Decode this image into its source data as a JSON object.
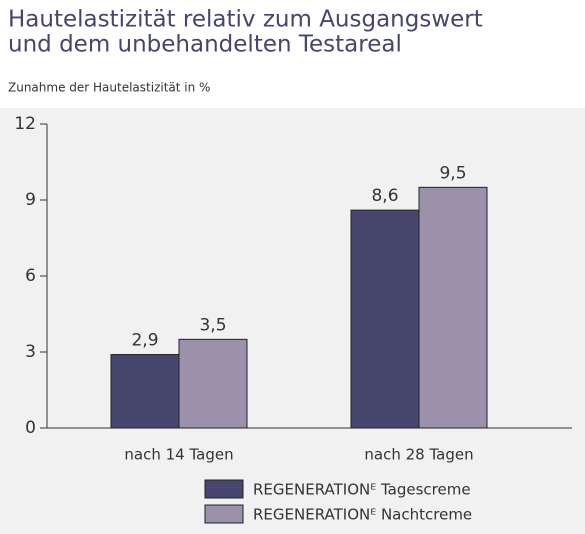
{
  "chart_data": {
    "type": "bar",
    "title": [
      "Hautelastizität relativ zum Ausgangswert",
      "und dem unbehandelten Testareal"
    ],
    "subtitle": "Zunahme der Hautelastizität in %",
    "categories": [
      "nach 14 Tagen",
      "nach 28 Tagen"
    ],
    "series": [
      {
        "name": "REGENERATIONᴱ Tagescreme",
        "color": "#46466f",
        "values": [
          2.9,
          8.6
        ],
        "value_labels": [
          "2,9",
          "8,6"
        ]
      },
      {
        "name": "REGENERATIONᴱ Nachtcreme",
        "color": "#9b91ab",
        "values": [
          3.5,
          9.5
        ],
        "value_labels": [
          "3,5",
          "9,5"
        ]
      }
    ],
    "ylim": [
      0,
      12
    ],
    "yticks": [
      0,
      3,
      6,
      9,
      12
    ],
    "grid": false
  }
}
